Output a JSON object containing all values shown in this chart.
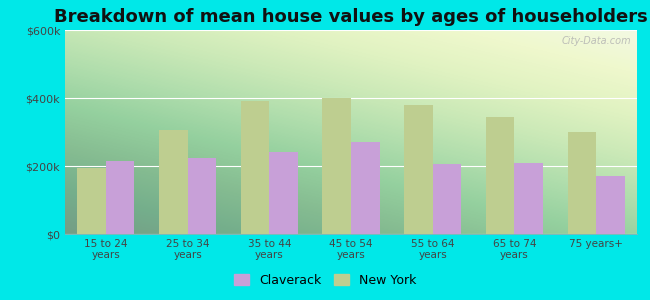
{
  "title": "Breakdown of mean house values by ages of householders",
  "categories": [
    "15 to 24\nyears",
    "25 to 34\nyears",
    "35 to 44\nyears",
    "45 to 54\nyears",
    "55 to 64\nyears",
    "65 to 74\nyears",
    "75 years+"
  ],
  "claverack": [
    215000,
    225000,
    240000,
    270000,
    205000,
    210000,
    170000
  ],
  "new_york": [
    195000,
    305000,
    390000,
    400000,
    380000,
    345000,
    300000
  ],
  "claverack_color": "#c8a0d8",
  "new_york_color": "#bece90",
  "outer_background": "#00e8e8",
  "ylim": [
    0,
    600000
  ],
  "yticks": [
    0,
    200000,
    400000,
    600000
  ],
  "ytick_labels": [
    "$0",
    "$200k",
    "$400k",
    "$600k"
  ],
  "bar_width": 0.35,
  "legend_claverack": "Claverack",
  "legend_new_york": "New York",
  "title_fontsize": 13,
  "watermark": "City-Data.com"
}
